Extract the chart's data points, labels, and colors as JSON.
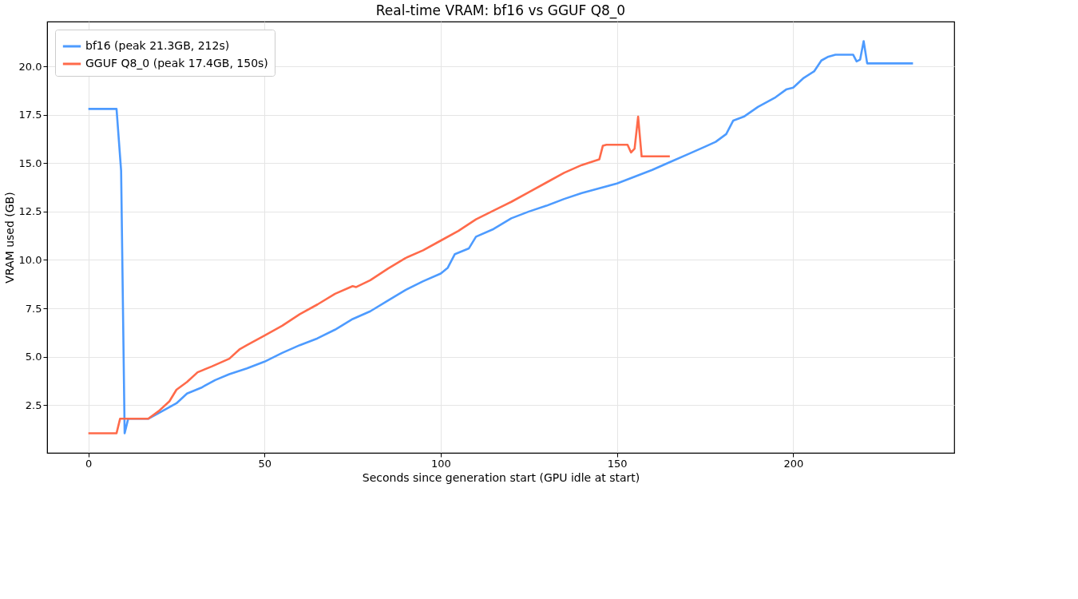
{
  "chart_data": {
    "type": "line",
    "title": "Real-time VRAM: bf16 vs GGUF Q8_0",
    "xlabel": "Seconds since generation start (GPU idle at start)",
    "ylabel": "VRAM used (GB)",
    "xlim": [
      -11.7,
      245.7
    ],
    "ylim": [
      0.04,
      22.31
    ],
    "xticks": [
      0,
      50,
      100,
      150,
      200
    ],
    "yticks": [
      {
        "value": 2.5,
        "label": "2.5"
      },
      {
        "value": 5,
        "label": "5.0"
      },
      {
        "value": 7.5,
        "label": "7.5"
      },
      {
        "value": 10,
        "label": "10.0"
      },
      {
        "value": 12.5,
        "label": "12.5"
      },
      {
        "value": 15,
        "label": "15.0"
      },
      {
        "value": 17.5,
        "label": "17.5"
      },
      {
        "value": 20,
        "label": "20.0"
      }
    ],
    "grid": true,
    "legend": "top left",
    "line_style": "solid",
    "series": [
      {
        "name": "bf16 (peak 21.3GB, 212s)",
        "color": "#4d9bff",
        "x": [
          0,
          8,
          9.3,
          10.3,
          11.3,
          17,
          20,
          25,
          28,
          32,
          36,
          40,
          45,
          50,
          55,
          60,
          65,
          70,
          75,
          80,
          85,
          90,
          95,
          100,
          102,
          104,
          108,
          110,
          115,
          120,
          125,
          130,
          135,
          140,
          145,
          150,
          155,
          160,
          165,
          170,
          175,
          178,
          181,
          183,
          186,
          190,
          195,
          198,
          200,
          203,
          206,
          208,
          210,
          212,
          217,
          218,
          219,
          220,
          221,
          234
        ],
        "values": [
          17.8,
          17.8,
          14.6,
          1.05,
          1.8,
          1.8,
          2.1,
          2.6,
          3.1,
          3.4,
          3.8,
          4.1,
          4.4,
          4.75,
          5.2,
          5.6,
          5.95,
          6.4,
          6.95,
          7.35,
          7.9,
          8.45,
          8.9,
          9.3,
          9.6,
          10.3,
          10.6,
          11.2,
          11.6,
          12.15,
          12.5,
          12.8,
          13.15,
          13.45,
          13.7,
          13.95,
          14.3,
          14.65,
          15.05,
          15.45,
          15.85,
          16.1,
          16.5,
          17.2,
          17.4,
          17.9,
          18.4,
          18.8,
          18.9,
          19.4,
          19.75,
          20.3,
          20.5,
          20.6,
          20.6,
          20.25,
          20.35,
          21.3,
          20.15,
          20.15
        ]
      },
      {
        "name": "GGUF Q8_0 (peak 17.4GB, 150s)",
        "color": "#ff6a4a",
        "x": [
          0,
          8,
          9,
          17,
          20,
          23,
          25,
          28,
          31,
          35,
          40,
          43,
          45,
          50,
          55,
          60,
          65,
          70,
          75,
          76,
          80,
          85,
          90,
          95,
          100,
          105,
          110,
          115,
          120,
          125,
          130,
          135,
          140,
          145,
          146,
          147,
          153,
          154,
          155,
          156,
          157,
          165
        ],
        "values": [
          1.05,
          1.05,
          1.8,
          1.8,
          2.2,
          2.7,
          3.3,
          3.7,
          4.2,
          4.5,
          4.9,
          5.4,
          5.6,
          6.1,
          6.6,
          7.2,
          7.7,
          8.25,
          8.65,
          8.6,
          8.95,
          9.55,
          10.1,
          10.5,
          11.0,
          11.5,
          12.1,
          12.55,
          13.0,
          13.5,
          14.0,
          14.5,
          14.9,
          15.2,
          15.9,
          15.95,
          15.95,
          15.55,
          15.75,
          17.4,
          15.35,
          15.35
        ]
      }
    ]
  }
}
